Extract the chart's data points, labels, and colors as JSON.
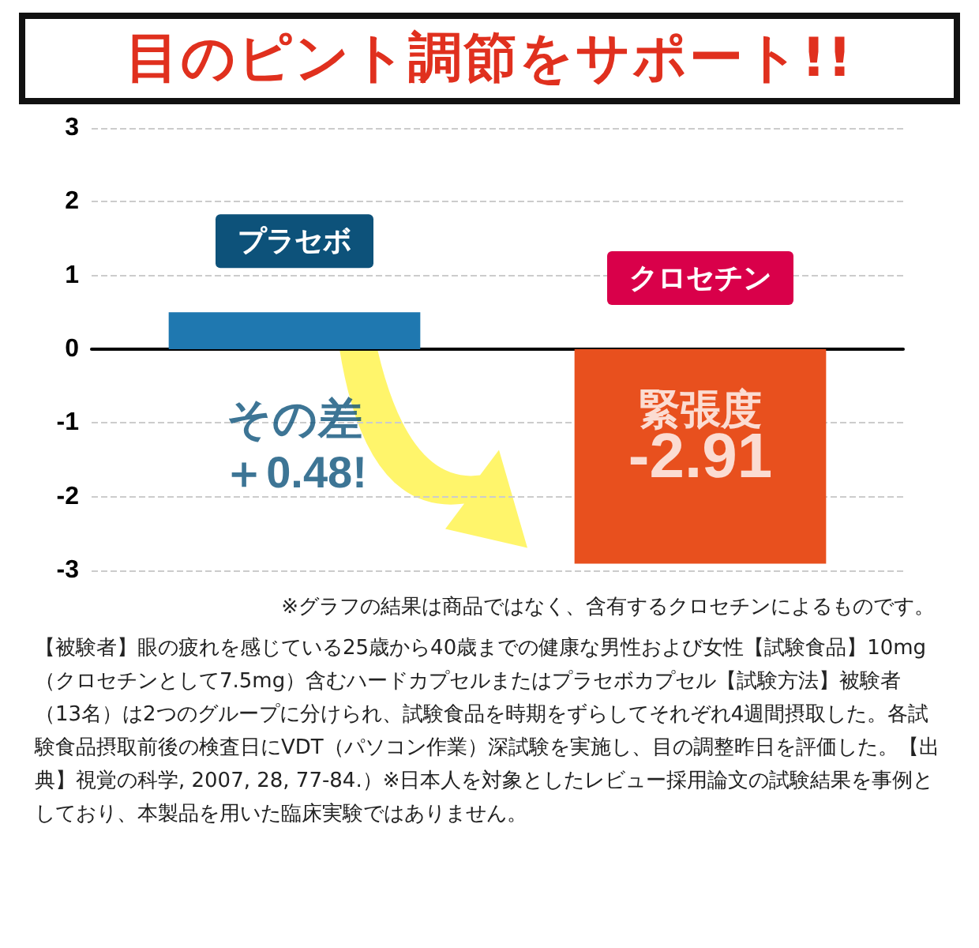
{
  "chart_data": {
    "type": "bar",
    "title": "目のピント調節をサポート!!",
    "categories": [
      "プラセボ",
      "クロセチン"
    ],
    "values": [
      0.5,
      -2.91
    ],
    "colors": [
      "#1f78b0",
      "#e8501e"
    ],
    "value_labels": [
      null,
      "-2.91"
    ],
    "ylim": [
      -3,
      3
    ],
    "yticks": [
      -3,
      -2,
      -1,
      0,
      1,
      2,
      3
    ],
    "grid": "y",
    "annotations": [
      "緊張度",
      "その差＋0.48!",
      "※グラフの結果は商品ではなく、含有するクロセチンによるものです。",
      "【被験者】眼の疲れを感じている25歳から40歳までの健康な男性および女性【試験食品】10mg（クロセチンとして7.5mg）含むハードカプセルまたはプラセボカプセル【試験方法】被験者（13名）は2つのグループに分けられ、試験食品を時期をずらしてそれぞれ4週間摂取した。各試験食品摂取前後の検査日にVDT（パソコン作業）深試験を実施し、目の調整昨日を評価した。【出典】視覚の科学, 2007, 28, 77-84.）※日本人を対象としたレビュー採用論文の試験結果を事例としており、本製品を用いた臨床実験ではありません。"
    ]
  }
}
